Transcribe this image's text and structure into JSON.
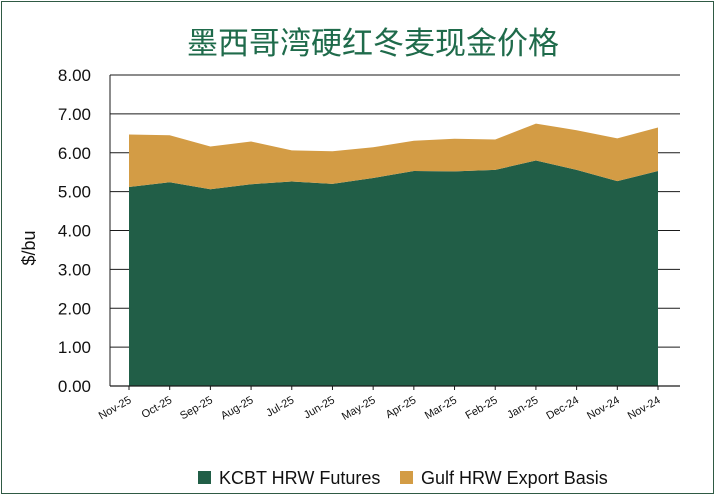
{
  "chart_data": {
    "type": "area",
    "stacked": true,
    "title": "墨西哥湾硬红冬麦现金价格",
    "xlabel": "",
    "ylabel": "$/bu",
    "ylim": [
      0,
      8
    ],
    "yticks": [
      "0.00",
      "1.00",
      "2.00",
      "3.00",
      "4.00",
      "5.00",
      "6.00",
      "7.00",
      "8.00"
    ],
    "grid": "horizontal",
    "legend_position": "bottom",
    "categories": [
      "Nov-25",
      "Oct-25",
      "Sep-25",
      "Aug-25",
      "Jul-25",
      "Jun-25",
      "May-25",
      "Apr-25",
      "Mar-25",
      "Feb-25",
      "Jan-25",
      "Dec-24",
      "Nov-24",
      "Nov-24"
    ],
    "series": [
      {
        "name": "KCBT HRW Futures",
        "color": "#215e47",
        "values": [
          5.12,
          5.24,
          5.06,
          5.19,
          5.26,
          5.2,
          5.35,
          5.53,
          5.52,
          5.56,
          5.8,
          5.56,
          5.27,
          5.53
        ]
      },
      {
        "name": "Gulf HRW Export Basis",
        "color": "#d39c45",
        "values": [
          1.35,
          1.21,
          1.1,
          1.1,
          0.8,
          0.84,
          0.79,
          0.78,
          0.84,
          0.78,
          0.95,
          1.02,
          1.1,
          1.12
        ]
      }
    ]
  }
}
